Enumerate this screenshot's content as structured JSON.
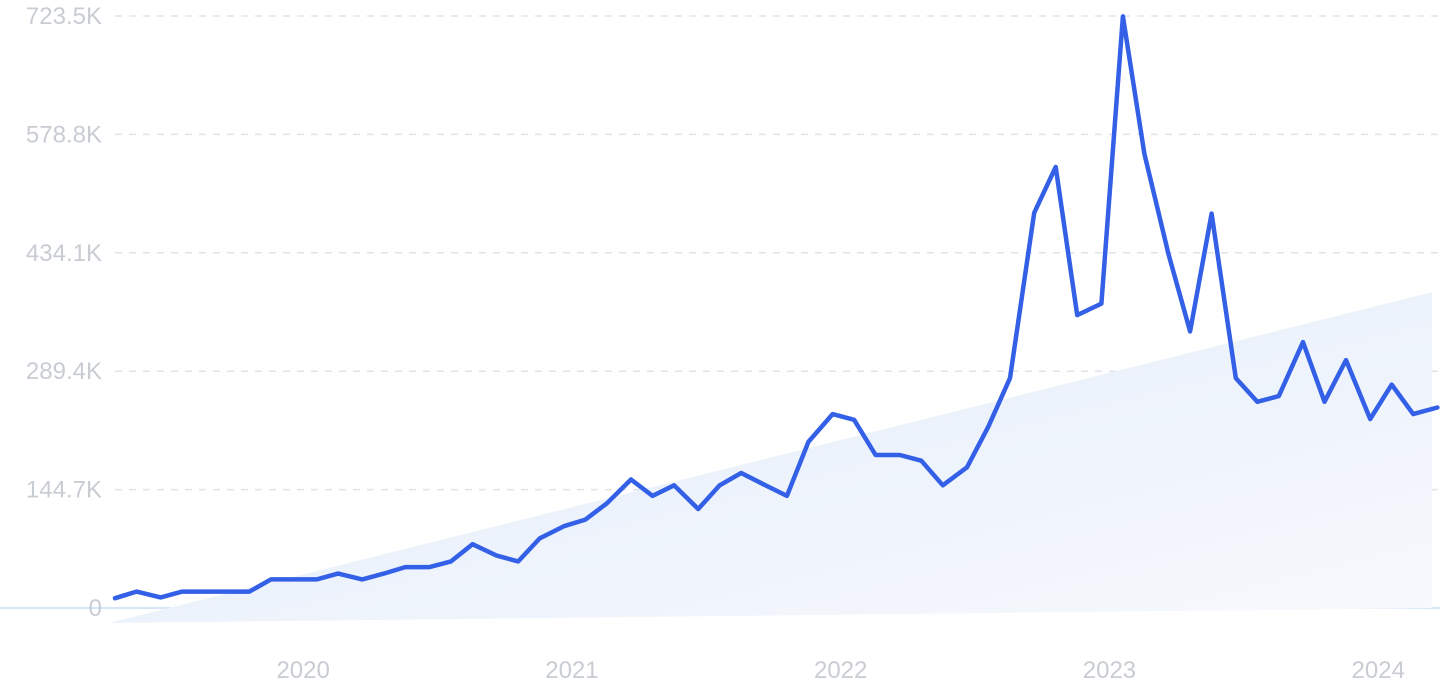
{
  "chart_data": {
    "type": "line",
    "title": "",
    "xlabel": "",
    "ylabel": "",
    "ylim": [
      0,
      723.5
    ],
    "y_unit": "K",
    "y_ticks": [
      {
        "value": 0,
        "label": "0"
      },
      {
        "value": 144.7,
        "label": "144.7K"
      },
      {
        "value": 289.4,
        "label": "289.4K"
      },
      {
        "value": 434.1,
        "label": "434.1K"
      },
      {
        "value": 578.8,
        "label": "578.8K"
      },
      {
        "value": 723.5,
        "label": "723.5K"
      }
    ],
    "x_ticks": [
      {
        "value": 2020.0,
        "label": "2020"
      },
      {
        "value": 2021.0,
        "label": "2021"
      },
      {
        "value": 2022.0,
        "label": "2022"
      },
      {
        "value": 2023.0,
        "label": "2023"
      },
      {
        "value": 2024.0,
        "label": "2024"
      }
    ],
    "xlim": [
      2019.3,
      2024.2
    ],
    "grid": true,
    "series": [
      {
        "name": "",
        "x": [
          2019.3,
          2019.38,
          2019.47,
          2019.55,
          2019.63,
          2019.72,
          2019.8,
          2019.88,
          2019.97,
          2020.05,
          2020.13,
          2020.22,
          2020.3,
          2020.38,
          2020.47,
          2020.55,
          2020.63,
          2020.72,
          2020.8,
          2020.88,
          2020.97,
          2021.05,
          2021.13,
          2021.22,
          2021.3,
          2021.38,
          2021.47,
          2021.55,
          2021.63,
          2021.72,
          2021.8,
          2021.88,
          2021.97,
          2022.05,
          2022.13,
          2022.22,
          2022.3,
          2022.38,
          2022.47,
          2022.55,
          2022.63,
          2022.72,
          2022.8,
          2022.88,
          2022.97,
          2023.05,
          2023.13,
          2023.22,
          2023.3,
          2023.38,
          2023.47,
          2023.55,
          2023.63,
          2023.72,
          2023.8,
          2023.88,
          2023.97,
          2024.05,
          2024.13,
          2024.22
        ],
        "values": [
          12,
          20,
          13,
          20,
          20,
          20,
          20,
          35,
          35,
          35,
          42,
          35,
          42,
          50,
          50,
          57,
          78,
          64,
          57,
          85,
          100,
          108,
          128,
          157,
          137,
          150,
          121,
          150,
          165,
          150,
          137,
          203,
          237,
          230,
          187,
          187,
          180,
          150,
          172,
          222,
          281,
          483,
          539,
          358,
          372,
          723,
          555,
          432,
          338,
          482,
          281,
          252,
          259,
          325,
          252,
          303,
          231,
          273,
          237,
          245
        ]
      }
    ],
    "trend": {
      "x": [
        2019.5,
        2024.2
      ],
      "values": [
        0,
        386
      ]
    },
    "colors": {
      "line": "#3360e6",
      "area_top": "#e2ecfa",
      "area_bottom": "#f7f9fd",
      "grid": "#e0e4ea",
      "baseline": "#c7dcf5",
      "tick_text": "#c8ccd3"
    }
  }
}
